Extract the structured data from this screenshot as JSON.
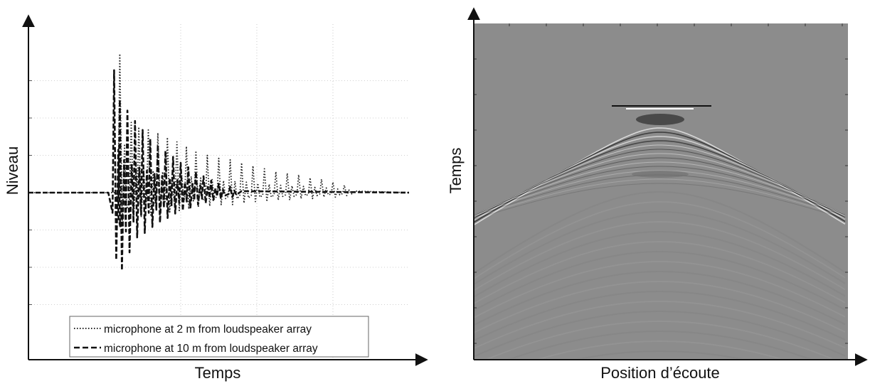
{
  "figure": {
    "left_panel": {
      "xlabel": "Temps",
      "ylabel": "Niveau",
      "legend": [
        "microphone at 2 m from loudspeaker array",
        "microphone at 10 m from loudspeaker array"
      ]
    },
    "right_panel": {
      "xlabel": "Position d’écoute",
      "ylabel": "Temps"
    }
  },
  "chart_data": [
    {
      "type": "line",
      "title": "",
      "xlabel": "Temps",
      "ylabel": "Niveau",
      "grid": true,
      "legend_position": "bottom",
      "xlim": [
        0,
        100
      ],
      "ylim": [
        -1,
        1
      ],
      "series": [
        {
          "name": "microphone at 2 m from loudspeaker array",
          "style": "dotted",
          "color": "#222222",
          "onset": 24,
          "spikes": [
            {
              "t": 24,
              "pos": 0.93,
              "neg": -0.22
            },
            {
              "t": 27,
              "pos": 0.47,
              "neg": -0.18
            },
            {
              "t": 29,
              "pos": 0.44,
              "neg": -0.16
            },
            {
              "t": 31.5,
              "pos": 0.42,
              "neg": -0.15
            },
            {
              "t": 34,
              "pos": 0.4,
              "neg": -0.14
            },
            {
              "t": 36.5,
              "pos": 0.37,
              "neg": -0.13
            },
            {
              "t": 39,
              "pos": 0.34,
              "neg": -0.12
            },
            {
              "t": 41.5,
              "pos": 0.31,
              "neg": -0.11
            },
            {
              "t": 44,
              "pos": 0.28,
              "neg": -0.1
            },
            {
              "t": 47,
              "pos": 0.25,
              "neg": -0.09
            },
            {
              "t": 50,
              "pos": 0.23,
              "neg": -0.08
            },
            {
              "t": 53,
              "pos": 0.22,
              "neg": -0.08
            },
            {
              "t": 56,
              "pos": 0.2,
              "neg": -0.07
            },
            {
              "t": 59,
              "pos": 0.18,
              "neg": -0.06
            },
            {
              "t": 62,
              "pos": 0.16,
              "neg": -0.06
            },
            {
              "t": 65,
              "pos": 0.14,
              "neg": -0.05
            },
            {
              "t": 68,
              "pos": 0.13,
              "neg": -0.05
            },
            {
              "t": 71,
              "pos": 0.12,
              "neg": -0.04
            },
            {
              "t": 74,
              "pos": 0.1,
              "neg": -0.04
            },
            {
              "t": 77,
              "pos": 0.09,
              "neg": -0.03
            },
            {
              "t": 80,
              "pos": 0.07,
              "neg": -0.03
            },
            {
              "t": 83,
              "pos": 0.05,
              "neg": -0.02
            }
          ]
        },
        {
          "name": "microphone at 10 m from loudspeaker array",
          "style": "dashed",
          "color": "#111111",
          "onset": 22,
          "spikes": [
            {
              "t": 22.5,
              "pos": 0.82,
              "neg": -0.45
            },
            {
              "t": 24,
              "pos": 0.62,
              "neg": -0.52
            },
            {
              "t": 26,
              "pos": 0.55,
              "neg": -0.4
            },
            {
              "t": 28,
              "pos": 0.48,
              "neg": -0.3
            },
            {
              "t": 30,
              "pos": 0.42,
              "neg": -0.27
            },
            {
              "t": 32,
              "pos": 0.36,
              "neg": -0.23
            },
            {
              "t": 34,
              "pos": 0.32,
              "neg": -0.2
            },
            {
              "t": 36,
              "pos": 0.28,
              "neg": -0.17
            },
            {
              "t": 38,
              "pos": 0.24,
              "neg": -0.14
            },
            {
              "t": 40,
              "pos": 0.2,
              "neg": -0.12
            },
            {
              "t": 42,
              "pos": 0.17,
              "neg": -0.1
            },
            {
              "t": 44,
              "pos": 0.14,
              "neg": -0.08
            },
            {
              "t": 46,
              "pos": 0.11,
              "neg": -0.07
            },
            {
              "t": 48,
              "pos": 0.08,
              "neg": -0.05
            },
            {
              "t": 50,
              "pos": 0.06,
              "neg": -0.04
            },
            {
              "t": 53,
              "pos": 0.04,
              "neg": -0.03
            }
          ]
        }
      ]
    },
    {
      "type": "heatmap",
      "title": "",
      "xlabel": "Position d’écoute",
      "ylabel": "Temps",
      "background": "#8c8c8c",
      "colormap": "gray",
      "description_of_pattern": "hyperbolic wavefront arrivals"
    }
  ]
}
